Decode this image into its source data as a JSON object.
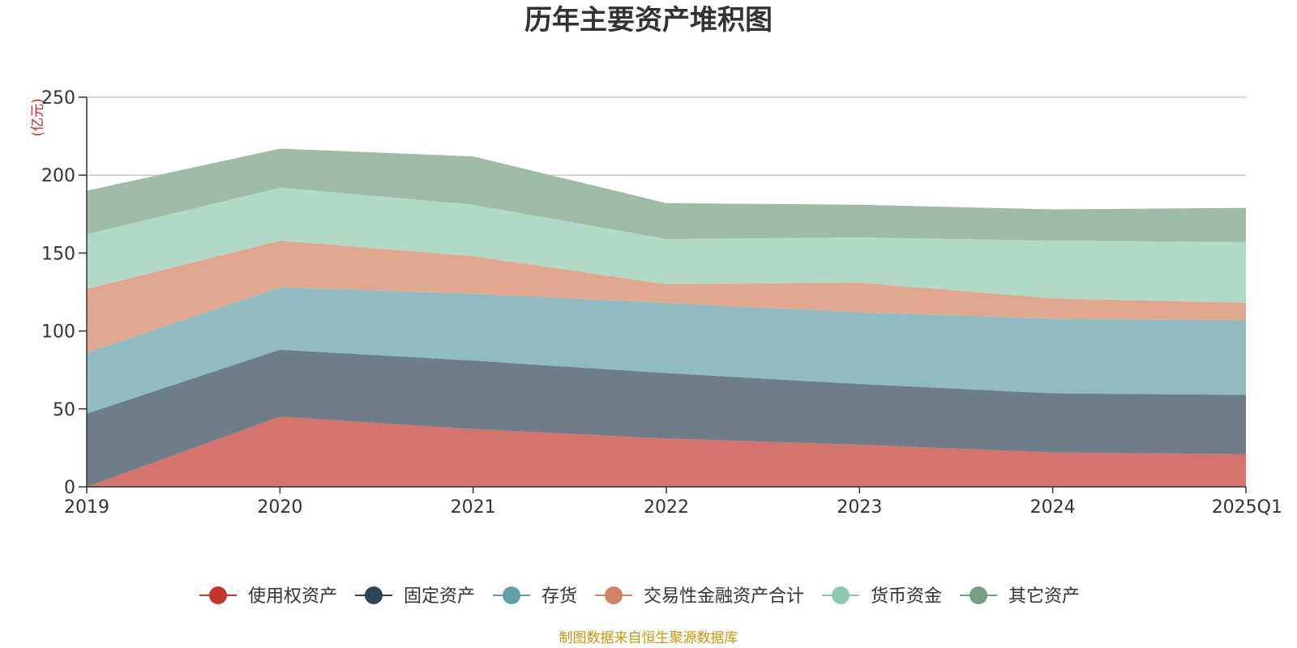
{
  "chart_data": {
    "type": "area",
    "stacked": true,
    "title": "历年主要资产堆积图",
    "unit_label": "(亿元)",
    "categories": [
      "2019",
      "2020",
      "2021",
      "2022",
      "2023",
      "2024",
      "2025Q1"
    ],
    "ylim": [
      0,
      250
    ],
    "yticks": [
      "0",
      "50",
      "100",
      "150",
      "200",
      "250"
    ],
    "grid": true,
    "legend_position": "bottom",
    "series": [
      {
        "name": "使用权资产",
        "color": "#d4726e",
        "marker_color": "#c23531",
        "values": [
          0,
          45,
          37,
          31,
          27,
          22,
          21
        ]
      },
      {
        "name": "固定资产",
        "color": "#6e7d87",
        "marker_color": "#2f4554",
        "values": [
          47,
          43,
          44,
          42,
          39,
          38,
          38
        ]
      },
      {
        "name": "存货",
        "color": "#90bcc1",
        "marker_color": "#61a0a8",
        "values": [
          39,
          40,
          43,
          45,
          46,
          48,
          48
        ]
      },
      {
        "name": "交易性金融资产合计",
        "color": "#e0a690",
        "marker_color": "#d48265",
        "values": [
          41,
          30,
          24,
          12,
          19,
          13,
          11
        ]
      },
      {
        "name": "货币资金",
        "color": "#b1d9c5",
        "marker_color": "#91c7ae",
        "values": [
          35,
          34,
          33,
          29,
          29,
          37,
          39
        ]
      },
      {
        "name": "其它资产",
        "color": "#9fbaa6",
        "marker_color": "#749f83",
        "values": [
          28,
          25,
          31,
          23,
          21,
          20,
          22
        ]
      }
    ]
  },
  "footer": {
    "source": "制图数据来自恒生聚源数据库"
  }
}
